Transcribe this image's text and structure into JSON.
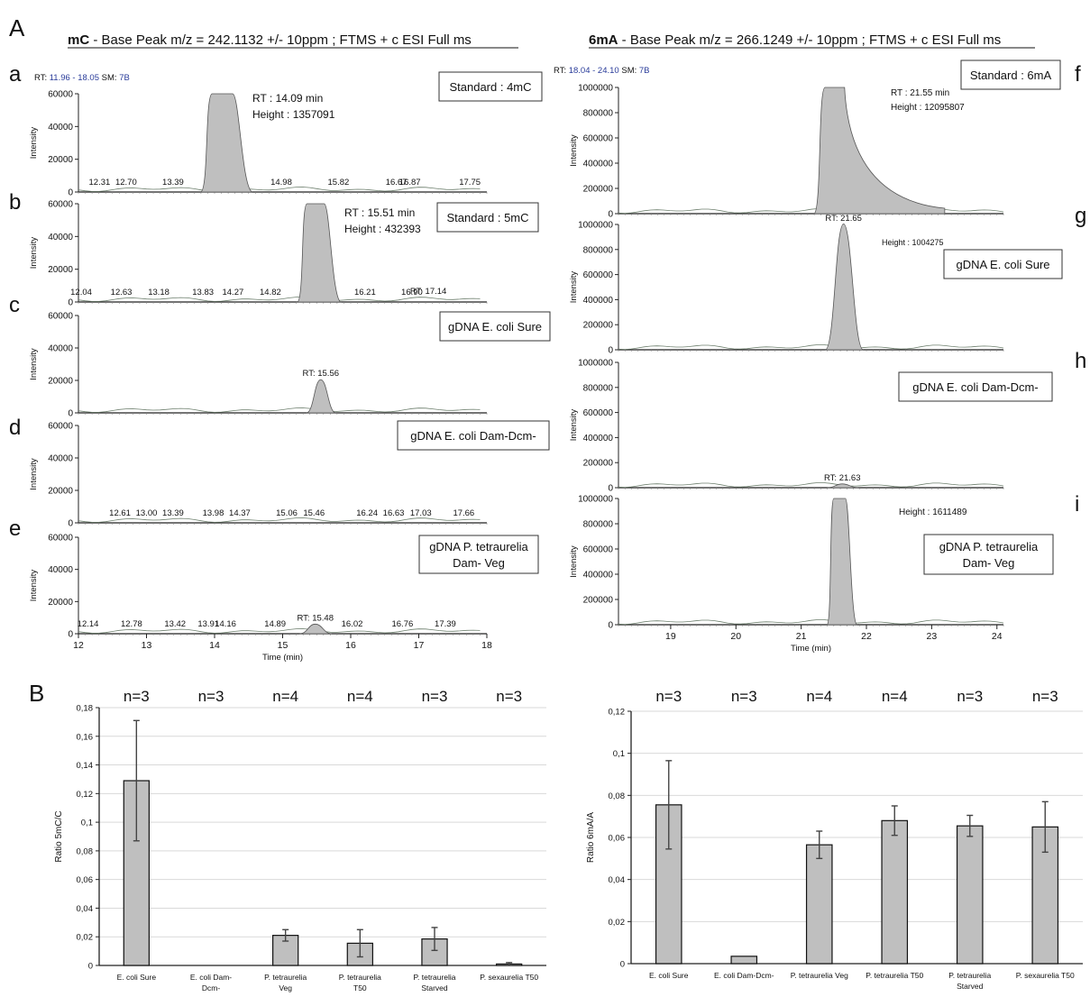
{
  "figure": {
    "part_a": "A",
    "part_b": "B",
    "header_mc_bold": "mC",
    "header_mc_rest": " - Base Peak m/z = 242.1132 +/- 10ppm ; FTMS + c ESI Full ms",
    "header_6ma_bold": "6mA",
    "header_6ma_rest": " - Base Peak m/z = 266.1249 +/- 10ppm ; FTMS + c ESI Full ms"
  },
  "colors": {
    "fill": "#bfbfbf",
    "stroke": "#555555",
    "axis": "#222222",
    "grid": "#d9d9d9",
    "rt_blue": "#2a3c9a"
  },
  "chart_data": [
    {
      "type": "area",
      "panel": "a",
      "x_label": "",
      "y_label": "Intensity",
      "xlim": [
        12,
        18
      ],
      "ylim": [
        0,
        60000
      ],
      "yticks": [
        "60000",
        "40000",
        "20000",
        "0"
      ],
      "rt_info": {
        "label": "RT: ",
        "range": "11.96 - 18.05",
        "sm_label": "SM: ",
        "sm": "7B"
      },
      "box_label": [
        "Standard : 4mC"
      ],
      "annotations": [
        "RT : 14.09 min",
        "Height : 1357091"
      ],
      "peak": {
        "center": 14.09,
        "start": 13.8,
        "end": 14.55,
        "height": 62000,
        "clipped": true
      },
      "peak_labels": [
        [
          12.31,
          "12.31"
        ],
        [
          12.7,
          "12.70"
        ],
        [
          13.39,
          "13.39"
        ],
        [
          14.98,
          "14.98"
        ],
        [
          15.82,
          "15.82"
        ],
        [
          16.67,
          "16.67"
        ],
        [
          16.87,
          "16.87"
        ],
        [
          17.75,
          "17.75"
        ]
      ]
    },
    {
      "type": "area",
      "panel": "b",
      "x_label": "",
      "y_label": "Intensity",
      "xlim": [
        12,
        18
      ],
      "ylim": [
        0,
        60000
      ],
      "yticks": [
        "60000",
        "40000",
        "20000",
        "0"
      ],
      "box_label": [
        "Standard : 5mC"
      ],
      "annotations": [
        "RT : 15.51 min",
        "Height : 432393"
      ],
      "peak": {
        "center": 15.51,
        "start": 15.22,
        "end": 15.85,
        "height": 62000,
        "clipped": true
      },
      "peak_labels": [
        [
          12.04,
          "12.04"
        ],
        [
          12.63,
          "12.63"
        ],
        [
          13.18,
          "13.18"
        ],
        [
          13.83,
          "13.83"
        ],
        [
          14.27,
          "14.27"
        ],
        [
          14.82,
          "14.82"
        ],
        [
          16.21,
          "16.21"
        ],
        [
          16.9,
          "16.90"
        ],
        [
          17.14,
          "RT: 17.14"
        ]
      ]
    },
    {
      "type": "area",
      "panel": "c",
      "x_label": "",
      "y_label": "Intensity",
      "xlim": [
        12,
        18
      ],
      "ylim": [
        0,
        60000
      ],
      "yticks": [
        "60000",
        "40000",
        "20000",
        "0"
      ],
      "box_label": [
        "gDNA E. coli Sure"
      ],
      "peak": {
        "center": 15.56,
        "start": 15.35,
        "end": 15.78,
        "height": 20500,
        "clipped": false
      },
      "peak_labels": [
        [
          15.56,
          "RT: 15.56"
        ]
      ]
    },
    {
      "type": "area",
      "panel": "d",
      "x_label": "",
      "y_label": "Intensity",
      "xlim": [
        12,
        18
      ],
      "ylim": [
        0,
        60000
      ],
      "yticks": [
        "60000",
        "40000",
        "20000",
        "0"
      ],
      "box_label": [
        "gDNA E. coli Dam-Dcm-"
      ],
      "peak": null,
      "peak_labels": [
        [
          12.61,
          "12.61"
        ],
        [
          13.0,
          "13.00"
        ],
        [
          13.39,
          "13.39"
        ],
        [
          13.98,
          "13.98"
        ],
        [
          14.37,
          "14.37"
        ],
        [
          15.06,
          "15.06"
        ],
        [
          15.46,
          "15.46"
        ],
        [
          16.24,
          "16.24"
        ],
        [
          16.63,
          "16.63"
        ],
        [
          17.03,
          "17.03"
        ],
        [
          17.66,
          "17.66"
        ]
      ]
    },
    {
      "type": "area",
      "panel": "e",
      "x_label": "Time (min)",
      "y_label": "Intensity",
      "xlim": [
        12,
        18
      ],
      "ylim": [
        0,
        60000
      ],
      "yticks": [
        "60000",
        "40000",
        "20000",
        "0"
      ],
      "xticks": [
        "12",
        "13",
        "14",
        "15",
        "16",
        "17",
        "18"
      ],
      "box_label": [
        "gDNA P. tetraurelia",
        "Dam- Veg"
      ],
      "peak": {
        "center": 15.48,
        "start": 15.25,
        "end": 15.72,
        "height": 6000,
        "clipped": false
      },
      "peak_labels": [
        [
          12.14,
          "12.14"
        ],
        [
          12.78,
          "12.78"
        ],
        [
          13.42,
          "13.42"
        ],
        [
          13.91,
          "13.91"
        ],
        [
          14.16,
          "14.16"
        ],
        [
          14.89,
          "14.89"
        ],
        [
          15.48,
          "RT: 15.48"
        ],
        [
          16.02,
          "16.02"
        ],
        [
          16.76,
          "16.76"
        ],
        [
          17.39,
          "17.39"
        ]
      ]
    },
    {
      "type": "area",
      "panel": "f",
      "x_label": "",
      "y_label": "Intensity",
      "xlim": [
        18.2,
        24.1
      ],
      "ylim": [
        0,
        1000000
      ],
      "yticks": [
        "1000000",
        "800000",
        "600000",
        "400000",
        "200000",
        "0"
      ],
      "rt_info": {
        "label": "RT: ",
        "range": "18.04 - 24.10",
        "sm_label": "SM: ",
        "sm": "7B"
      },
      "box_label": [
        "Standard : 6mA"
      ],
      "annotations": [
        "RT : 21.55 min",
        "Height : 12095807"
      ],
      "peak": {
        "center": 21.55,
        "start": 21.2,
        "end": 21.95,
        "height": 1000000,
        "clipped": true,
        "tail": true
      },
      "peak_labels": []
    },
    {
      "type": "area",
      "panel": "g",
      "x_label": "",
      "y_label": "Intensity",
      "xlim": [
        18.2,
        24.1
      ],
      "ylim": [
        0,
        1000000
      ],
      "yticks": [
        "1000000",
        "800000",
        "600000",
        "400000",
        "200000",
        "0"
      ],
      "box_label": [
        "gDNA E. coli Sure"
      ],
      "annotations": [
        "Height : 1004275"
      ],
      "peak": {
        "center": 21.65,
        "start": 21.37,
        "end": 21.95,
        "height": 1004275,
        "clipped": false
      },
      "peak_labels": [
        [
          21.65,
          "RT: 21.65"
        ]
      ]
    },
    {
      "type": "area",
      "panel": "h",
      "x_label": "",
      "y_label": "Intensity",
      "xlim": [
        18.2,
        24.1
      ],
      "ylim": [
        0,
        1000000
      ],
      "yticks": [
        "1000000",
        "800000",
        "600000",
        "400000",
        "200000",
        "0"
      ],
      "box_label": [
        "gDNA E. coli Dam-Dcm-"
      ],
      "peak": {
        "center": 21.63,
        "start": 21.4,
        "end": 21.88,
        "height": 30000,
        "clipped": false
      },
      "peak_labels": [
        [
          21.63,
          "RT: 21.63"
        ]
      ]
    },
    {
      "type": "area",
      "panel": "i",
      "x_label": "Time (min)",
      "y_label": "Intensity",
      "xlim": [
        18.2,
        24.1
      ],
      "ylim": [
        0,
        1000000
      ],
      "yticks": [
        "1000000",
        "800000",
        "600000",
        "400000",
        "200000",
        "0"
      ],
      "xticks": [
        "19",
        "20",
        "21",
        "22",
        "23",
        "24"
      ],
      "box_label": [
        "gDNA P. tetraurelia",
        "Dam- Veg"
      ],
      "annotations": [
        "Height : 1611489"
      ],
      "peak": {
        "center": 21.6,
        "start": 21.4,
        "end": 21.85,
        "height": 1000000,
        "clipped": true
      },
      "peak_labels": []
    },
    {
      "type": "bar",
      "panel": "B-left",
      "ylabel": "Ratio 5mC/C",
      "ylim": [
        0,
        0.18
      ],
      "yticks": [
        "0",
        "0,02",
        "0,04",
        "0,06",
        "0,08",
        "0,1",
        "0,12",
        "0,14",
        "0,16",
        "0,18"
      ],
      "categories": [
        [
          "E. coli Sure"
        ],
        [
          "E. coli Dam-",
          "Dcm-"
        ],
        [
          "P. tetraurelia",
          "Veg"
        ],
        [
          "P. tetraurelia",
          "T50"
        ],
        [
          "P. tetraurelia",
          "Starved"
        ],
        [
          "P. sexaurelia T50"
        ]
      ],
      "n_labels": [
        "n=3",
        "n=3",
        "n=4",
        "n=4",
        "n=3",
        "n=3"
      ],
      "values": [
        0.129,
        0.0,
        0.021,
        0.0155,
        0.0185,
        0.001
      ],
      "errors": [
        0.042,
        0.0,
        0.004,
        0.0095,
        0.008,
        0.001
      ]
    },
    {
      "type": "bar",
      "panel": "B-right",
      "ylabel": "Ratio 6mA/A",
      "ylim": [
        0,
        0.12
      ],
      "yticks": [
        "0",
        "0,02",
        "0,04",
        "0,06",
        "0,08",
        "0,1",
        "0,12"
      ],
      "categories": [
        [
          "E. coli Sure"
        ],
        [
          "E. coli Dam-Dcm-"
        ],
        [
          "P. tetraurelia Veg"
        ],
        [
          "P. tetraurelia T50"
        ],
        [
          "P. tetraurelia",
          "Starved"
        ],
        [
          "P. sexaurelia T50"
        ]
      ],
      "n_labels": [
        "n=3",
        "n=3",
        "n=4",
        "n=4",
        "n=3",
        "n=3"
      ],
      "values": [
        0.0755,
        0.0035,
        0.0565,
        0.068,
        0.0655,
        0.065
      ],
      "errors": [
        0.021,
        0.0,
        0.0065,
        0.007,
        0.005,
        0.012
      ]
    }
  ]
}
